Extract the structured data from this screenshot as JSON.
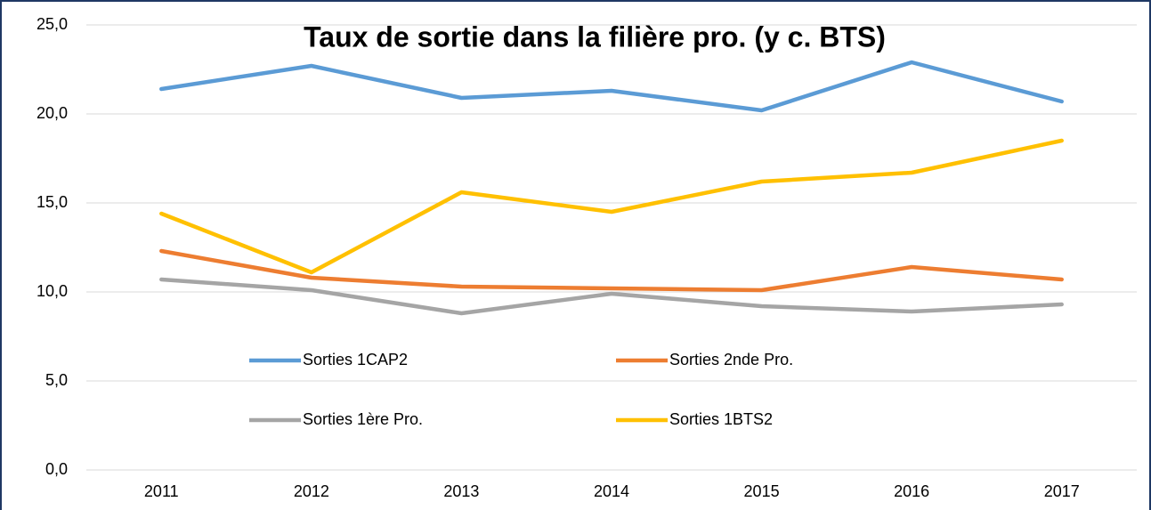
{
  "chart_data": {
    "type": "line",
    "title": "Taux de sortie dans la filière pro. (y c. BTS)",
    "categories": [
      "2011",
      "2012",
      "2013",
      "2014",
      "2015",
      "2016",
      "2017"
    ],
    "series": [
      {
        "name": "Sorties 1CAP2",
        "color": "#5b9bd5",
        "values": [
          21.4,
          22.7,
          20.9,
          21.3,
          20.2,
          22.9,
          20.7
        ]
      },
      {
        "name": "Sorties 2nde Pro.",
        "color": "#ed7d31",
        "values": [
          12.3,
          10.8,
          10.3,
          10.2,
          10.1,
          11.4,
          10.7
        ]
      },
      {
        "name": "Sorties 1ère Pro.",
        "color": "#a5a5a5",
        "values": [
          10.7,
          10.1,
          8.8,
          9.9,
          9.2,
          8.9,
          9.3
        ]
      },
      {
        "name": "Sorties 1BTS2",
        "color": "#ffc000",
        "values": [
          14.4,
          11.1,
          15.6,
          14.5,
          16.2,
          16.7,
          18.5
        ]
      }
    ],
    "ylim": [
      0,
      25
    ],
    "yticks": [
      {
        "value": 0,
        "label": "0,0"
      },
      {
        "value": 5,
        "label": "5,0"
      },
      {
        "value": 10,
        "label": "10,0"
      },
      {
        "value": 15,
        "label": "15,0"
      },
      {
        "value": 20,
        "label": "20,0"
      },
      {
        "value": 25,
        "label": "25,0"
      }
    ],
    "grid": true
  }
}
